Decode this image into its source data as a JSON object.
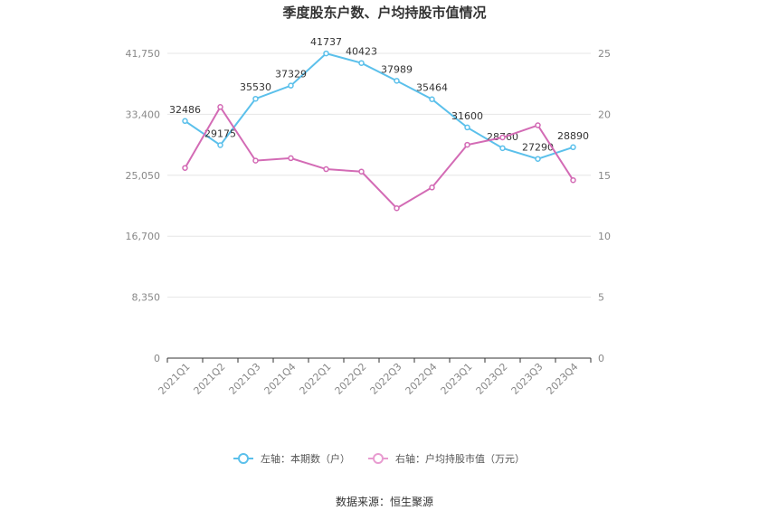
{
  "chart_data": {
    "type": "line",
    "title": "季度股东户数、户均持股市值情况",
    "categories": [
      "2021Q1",
      "2021Q2",
      "2021Q3",
      "2021Q4",
      "2022Q1",
      "2022Q2",
      "2022Q3",
      "2022Q4",
      "2023Q1",
      "2023Q2",
      "2023Q3",
      "2023Q4"
    ],
    "left_axis": {
      "ylim": [
        0,
        41750
      ],
      "ticks": [
        "0",
        "8,350",
        "16,700",
        "25,050",
        "33,400",
        "41,750"
      ]
    },
    "right_axis": {
      "ylim": [
        0,
        25
      ],
      "ticks": [
        "0",
        "5",
        "10",
        "15",
        "20",
        "25"
      ]
    },
    "series": [
      {
        "name": "左轴：本期数（户）",
        "axis": "left",
        "color": "#5bc0eb",
        "values": [
          32486,
          29175,
          35530,
          37329,
          41737,
          40423,
          37989,
          35464,
          31600,
          28760,
          27290,
          28890
        ],
        "labels": [
          "32486",
          "29175",
          "35530",
          "37329",
          "41737",
          "40423",
          "37989",
          "35464",
          "31600",
          "28760",
          "27290",
          "28890"
        ]
      },
      {
        "name": "右轴：户均持股市值（万元）",
        "axis": "right",
        "color": "#d36bb5",
        "values": [
          15.6,
          20.6,
          16.2,
          16.4,
          15.5,
          15.3,
          12.3,
          14.0,
          17.5,
          18.1,
          19.1,
          14.6
        ]
      }
    ],
    "grid": true,
    "legend_position": "bottom-center"
  },
  "footer": {
    "source": "数据来源：恒生聚源"
  }
}
